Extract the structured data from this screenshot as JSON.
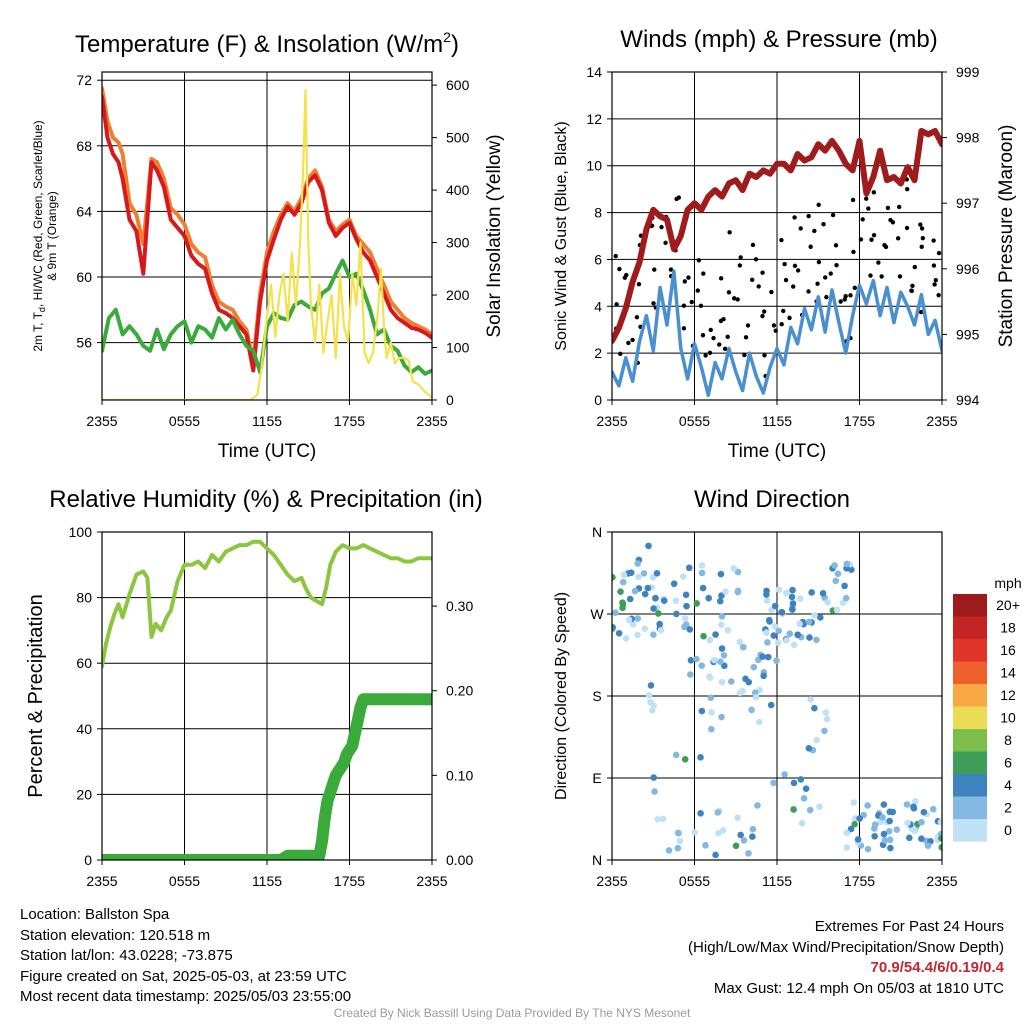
{
  "chart_data": [
    {
      "id": "temperature",
      "type": "line",
      "title": "Temperature (F) & Insolation (W/m²)",
      "xlabel": "Time (UTC)",
      "ylabel": "2m T, Td, HI/WC (Red, Green, Scarlet/Blue) & 9m T (Orange)",
      "ylabel2": "Solar Insolation (Yellow)",
      "x_ticks": [
        "2355",
        "0555",
        "1155",
        "1755",
        "2355"
      ],
      "xlim": [
        0,
        24
      ],
      "ylim": [
        52.5,
        72.5
      ],
      "yticks": [
        56,
        60,
        64,
        68,
        72
      ],
      "ylim2": [
        0,
        625
      ],
      "yticks2": [
        0,
        100,
        200,
        300,
        400,
        500,
        600
      ],
      "grid": true,
      "series": [
        {
          "key": "t9m",
          "color": "#f07e30",
          "axis": "left",
          "x": [
            0,
            0.4,
            0.8,
            1.2,
            1.5,
            2.0,
            2.5,
            3.0,
            3.6,
            4.0,
            4.5,
            5.0,
            5.5,
            6.0,
            6.5,
            7.0,
            7.5,
            8.0,
            8.5,
            9.0,
            9.5,
            10.0,
            10.5,
            11.0,
            11.5,
            12.0,
            12.5,
            13.0,
            13.5,
            14.0,
            14.5,
            15.0,
            15.5,
            16.0,
            16.5,
            17.0,
            17.5,
            18.0,
            18.5,
            19.0,
            19.5,
            20.0,
            20.5,
            21.0,
            21.5,
            22.0,
            22.5,
            23.0,
            23.5,
            24.0
          ],
          "y": [
            71.5,
            69.5,
            68.5,
            68.2,
            67.5,
            64.5,
            63.8,
            62.0,
            67.2,
            67.0,
            66.0,
            64.2,
            63.8,
            63.2,
            62.0,
            61.5,
            61.2,
            59.5,
            58.5,
            58.2,
            58.0,
            57.3,
            56.8,
            54.8,
            59.0,
            61.5,
            62.8,
            63.8,
            64.5,
            64.0,
            64.8,
            66.0,
            66.5,
            65.5,
            63.5,
            62.8,
            63.2,
            63.5,
            62.5,
            62.0,
            61.5,
            60.5,
            59.5,
            58.5,
            58.0,
            57.5,
            57.2,
            57.0,
            56.8,
            56.5
          ]
        },
        {
          "key": "t2m",
          "color": "#d7191c",
          "axis": "left",
          "x": [
            0,
            0.4,
            0.8,
            1.2,
            1.5,
            2.0,
            2.5,
            3.0,
            3.6,
            4.0,
            4.5,
            5.0,
            5.5,
            6.0,
            6.5,
            7.0,
            7.5,
            8.0,
            8.5,
            9.0,
            9.5,
            10.0,
            10.5,
            11.0,
            11.5,
            12.0,
            12.5,
            13.0,
            13.5,
            14.0,
            14.5,
            15.0,
            15.5,
            16.0,
            16.5,
            17.0,
            17.5,
            18.0,
            18.5,
            19.0,
            19.5,
            20.0,
            20.5,
            21.0,
            21.5,
            22.0,
            22.5,
            23.0,
            23.5,
            24.0
          ],
          "y": [
            71.0,
            68.5,
            67.5,
            67.0,
            66.0,
            63.5,
            62.8,
            60.2,
            67.0,
            66.5,
            65.5,
            63.5,
            63.0,
            62.5,
            61.3,
            60.8,
            60.5,
            59.0,
            58.0,
            57.8,
            57.5,
            57.0,
            56.5,
            54.3,
            58.5,
            61.0,
            62.3,
            63.5,
            64.3,
            63.8,
            64.5,
            65.8,
            66.2,
            65.3,
            63.3,
            62.5,
            63.0,
            63.3,
            62.3,
            61.5,
            61.0,
            60.0,
            59.0,
            58.0,
            57.5,
            57.2,
            56.9,
            56.8,
            56.6,
            56.3
          ]
        },
        {
          "key": "dewpoint",
          "color": "#3aab3a",
          "axis": "left",
          "x": [
            0,
            0.5,
            1.0,
            1.5,
            2.0,
            2.5,
            3.0,
            3.5,
            4.0,
            4.5,
            5.0,
            5.5,
            6.0,
            6.5,
            7.0,
            7.5,
            8.0,
            8.5,
            9.0,
            9.5,
            10.0,
            10.5,
            11.0,
            11.5,
            12.0,
            12.5,
            13.0,
            13.5,
            14.0,
            14.5,
            15.0,
            15.5,
            16.0,
            16.5,
            17.0,
            17.5,
            18.0,
            18.5,
            19.0,
            19.5,
            20.0,
            20.5,
            21.0,
            21.5,
            22.0,
            22.5,
            23.0,
            23.5,
            24.0
          ],
          "y": [
            55.5,
            57.5,
            58.0,
            56.5,
            57.0,
            56.5,
            55.8,
            55.5,
            56.8,
            55.6,
            56.5,
            57.0,
            57.3,
            56.0,
            57.0,
            56.8,
            56.3,
            57.5,
            56.8,
            57.4,
            56.5,
            55.8,
            55.5,
            54.2,
            57.0,
            57.8,
            57.5,
            57.4,
            58.3,
            58.5,
            58.2,
            58.0,
            59.0,
            59.3,
            60.2,
            61.0,
            60.0,
            60.2,
            59.2,
            58.0,
            56.5,
            56.8,
            55.8,
            55.5,
            54.6,
            54.2,
            54.5,
            54.1,
            54.3
          ]
        },
        {
          "key": "insolation",
          "color": "#f5e14a",
          "axis": "right",
          "x": [
            0,
            5.0,
            9.0,
            10.0,
            10.8,
            11.3,
            11.6,
            12.0,
            12.3,
            12.6,
            12.9,
            13.2,
            13.5,
            13.8,
            14.1,
            14.4,
            14.6,
            14.8,
            15.0,
            15.2,
            15.5,
            15.8,
            16.1,
            16.4,
            16.7,
            17.0,
            17.3,
            17.6,
            17.9,
            18.2,
            18.5,
            18.8,
            19.1,
            19.4,
            19.7,
            20.0,
            20.3,
            20.5,
            20.7,
            21.0,
            21.3,
            21.6,
            22.0,
            22.3,
            22.6,
            23.0,
            23.5,
            24.0
          ],
          "y": [
            0,
            0,
            0,
            0,
            0,
            10,
            60,
            160,
            220,
            120,
            200,
            240,
            150,
            280,
            180,
            300,
            420,
            590,
            300,
            180,
            110,
            220,
            90,
            150,
            200,
            80,
            240,
            140,
            110,
            240,
            180,
            300,
            90,
            70,
            90,
            150,
            250,
            140,
            80,
            110,
            70,
            80,
            80,
            75,
            35,
            30,
            15,
            5
          ]
        }
      ]
    },
    {
      "id": "winds",
      "type": "line",
      "title": "Winds (mph) & Pressure (mb)",
      "xlabel": "Time (UTC)",
      "ylabel": "Sonic Wind & Gust (Blue, Black)",
      "ylabel2": "Station Pressure (Maroon)",
      "x_ticks": [
        "2355",
        "0555",
        "1155",
        "1755",
        "2355"
      ],
      "xlim": [
        0,
        24
      ],
      "ylim": [
        0,
        14
      ],
      "yticks": [
        0,
        2,
        4,
        6,
        8,
        10,
        12,
        14
      ],
      "ylim2": [
        994,
        999
      ],
      "yticks2": [
        994,
        995,
        996,
        997,
        998,
        999
      ],
      "grid": true,
      "series": [
        {
          "key": "wind",
          "color": "#4a90d0",
          "axis": "left",
          "x": [
            0,
            0.5,
            1.0,
            1.5,
            2.0,
            2.5,
            3.0,
            3.5,
            4.0,
            4.5,
            5.0,
            5.5,
            6.0,
            6.5,
            7.0,
            7.5,
            8.0,
            8.5,
            9.0,
            9.5,
            10.0,
            10.5,
            11.0,
            11.5,
            12.0,
            12.5,
            13.0,
            13.5,
            14.0,
            14.5,
            15.0,
            15.5,
            16.0,
            16.5,
            17.0,
            17.5,
            18.0,
            18.5,
            19.0,
            19.5,
            20.0,
            20.5,
            21.0,
            21.5,
            22.0,
            22.5,
            23.0,
            23.5,
            24.0
          ],
          "y": [
            1.2,
            0.6,
            1.8,
            0.8,
            2.5,
            3.6,
            2.1,
            4.8,
            3.2,
            5.5,
            2.2,
            0.9,
            2.4,
            1.4,
            0.2,
            1.6,
            0.9,
            2.2,
            1.2,
            0.4,
            2.0,
            1.0,
            0.3,
            1.4,
            2.2,
            1.5,
            3.1,
            2.4,
            3.9,
            3.0,
            4.4,
            2.9,
            4.7,
            3.3,
            2.0,
            3.6,
            4.9,
            4.1,
            5.1,
            3.6,
            4.8,
            3.3,
            4.6,
            4.0,
            3.2,
            4.5,
            2.8,
            3.4,
            2.1
          ]
        },
        {
          "key": "pressure",
          "color": "#a01c1c",
          "axis": "right",
          "x": [
            0,
            0.5,
            1.0,
            1.5,
            2.0,
            2.5,
            3.0,
            3.5,
            4.0,
            4.5,
            5.0,
            5.5,
            6.0,
            6.5,
            7.0,
            7.5,
            8.0,
            8.5,
            9.0,
            9.5,
            10.0,
            10.5,
            11.0,
            11.5,
            12.0,
            12.5,
            13.0,
            13.5,
            14.0,
            14.5,
            15.0,
            15.5,
            16.0,
            16.5,
            17.0,
            17.5,
            18.0,
            18.5,
            19.0,
            19.5,
            20.0,
            20.5,
            21.0,
            21.5,
            22.0,
            22.5,
            23.0,
            23.5,
            24.0
          ],
          "y": [
            994.9,
            995.1,
            995.4,
            995.8,
            996.1,
            996.6,
            996.9,
            996.8,
            996.75,
            996.3,
            996.5,
            996.9,
            997.0,
            996.9,
            997.1,
            997.2,
            997.1,
            997.3,
            997.35,
            997.2,
            997.45,
            997.4,
            997.5,
            997.45,
            997.6,
            997.6,
            997.5,
            997.75,
            997.65,
            997.7,
            997.9,
            997.8,
            997.95,
            997.8,
            997.6,
            997.5,
            997.95,
            997.15,
            997.4,
            997.8,
            997.35,
            997.4,
            997.3,
            997.55,
            997.35,
            998.1,
            998.05,
            998.1,
            997.9
          ]
        }
      ]
    },
    {
      "id": "humidity",
      "type": "line",
      "title": "Relative Humidity (%) & Precipitation (in)",
      "xlabel": "",
      "ylabel": "Percent & Precipitation",
      "x_ticks": [
        "2355",
        "0555",
        "1155",
        "1755",
        "2355"
      ],
      "xlim": [
        0,
        24
      ],
      "ylim": [
        0,
        100
      ],
      "yticks": [
        0,
        20,
        40,
        60,
        80,
        100
      ],
      "ylim2": [
        0,
        0.3875
      ],
      "yticks2": [
        "0.00",
        "0.10",
        "0.20",
        "0.30"
      ],
      "grid": true,
      "series": [
        {
          "key": "rh",
          "color": "#8cc63f",
          "axis": "left",
          "x": [
            0,
            0.3,
            0.6,
            0.9,
            1.2,
            1.5,
            2.0,
            2.5,
            3.0,
            3.3,
            3.6,
            3.9,
            4.3,
            4.7,
            5.0,
            5.5,
            6.0,
            6.5,
            7.0,
            7.5,
            8.0,
            8.5,
            9.0,
            9.5,
            10.0,
            10.5,
            11.0,
            11.5,
            12.0,
            12.5,
            13.0,
            13.5,
            14.0,
            14.5,
            14.8,
            15.2,
            15.6,
            16.0,
            16.3,
            16.6,
            17.0,
            17.5,
            18.0,
            18.5,
            19.0,
            19.5,
            20.0,
            20.5,
            21.0,
            21.5,
            22.0,
            22.5,
            23.0,
            23.5,
            24.0
          ],
          "y": [
            59,
            66,
            71,
            75,
            78,
            74,
            81,
            87,
            88,
            86,
            68,
            72,
            70,
            74,
            76,
            85,
            90,
            90,
            91,
            89,
            93,
            91,
            94,
            95,
            96,
            96,
            97,
            97,
            95,
            93,
            90,
            87,
            85,
            86,
            83,
            80,
            79,
            78,
            83,
            90,
            94,
            96,
            95,
            95,
            96,
            95,
            94,
            93,
            92,
            92,
            91,
            91,
            92,
            92,
            92
          ]
        },
        {
          "key": "precip",
          "color": "#3aab3a",
          "axis": "right",
          "x": [
            0,
            2,
            4,
            6,
            8,
            10,
            12,
            13,
            13.5,
            14,
            14.5,
            15.0,
            15.4,
            15.8,
            16.0,
            16.2,
            16.4,
            16.6,
            16.8,
            17.0,
            17.2,
            17.4,
            17.6,
            17.8,
            18.0,
            18.2,
            18.4,
            18.6,
            18.8,
            19.0,
            20.0,
            21.0,
            22.0,
            23.0,
            24.0
          ],
          "y": [
            0,
            0,
            0,
            0,
            0,
            0,
            0,
            0,
            0.005,
            0.005,
            0.005,
            0.005,
            0.005,
            0.005,
            0.022,
            0.05,
            0.07,
            0.08,
            0.09,
            0.1,
            0.105,
            0.11,
            0.115,
            0.125,
            0.13,
            0.135,
            0.15,
            0.165,
            0.18,
            0.19,
            0.19,
            0.19,
            0.19,
            0.19,
            0.19
          ]
        }
      ]
    },
    {
      "id": "direction",
      "type": "scatter",
      "title": "Wind Direction",
      "ylabel": "Direction (Colored By Speed)",
      "x_ticks": [
        "2355",
        "0555",
        "1155",
        "1755",
        "2355"
      ],
      "xlim": [
        0,
        24
      ],
      "y_ticks": [
        "N",
        "E",
        "S",
        "W",
        "N"
      ],
      "ylim": [
        0,
        360
      ],
      "grid": true,
      "legend": {
        "title": "mph",
        "position": "right",
        "labels": [
          "20+",
          "18",
          "16",
          "14",
          "12",
          "10",
          "8",
          "6",
          "4",
          "2",
          "0"
        ],
        "colors": [
          "#9c1c1c",
          "#c42424",
          "#e0342b",
          "#f0602c",
          "#f8a845",
          "#eadd55",
          "#7dbd4a",
          "#3d9e5a",
          "#3f82c0",
          "#82b8e2",
          "#bfe1f6"
        ]
      }
    }
  ],
  "info": {
    "location": "Location: Ballston Spa",
    "elevation": "Station elevation: 120.518 m",
    "latlon": "Station lat/lon: 43.0228; -73.875",
    "created": "Figure created on Sat, 2025-05-03, at 23:59 UTC",
    "recent": "Most recent data timestamp: 2025/05/03 23:55:00"
  },
  "extremes": {
    "heading": "Extremes For Past 24 Hours",
    "subheading": "(High/Low/Max Wind/Precipitation/Snow Depth)",
    "values": "70.9/54.4/6/0.19/0.4",
    "max_gust": "Max Gust: 12.4 mph On 05/03 at 1810 UTC"
  },
  "credit": "Created By Nick Bassill Using Data Provided By The NYS Mesonet"
}
